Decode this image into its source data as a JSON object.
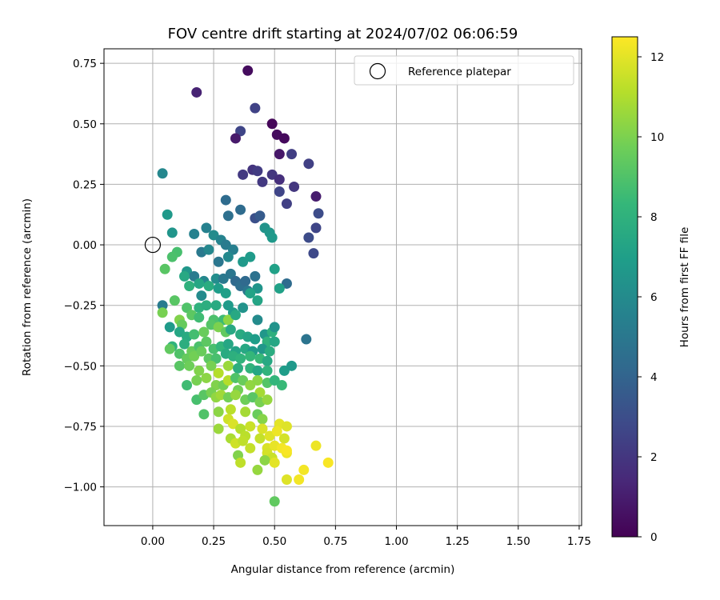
{
  "chart_data": {
    "type": "scatter",
    "title": "FOV centre drift starting at 2024/07/02 06:06:59",
    "xlabel": "Angular distance from reference (arcmin)",
    "ylabel": "Rotation from reference (arcmin)",
    "xlim": [
      -0.2,
      1.76
    ],
    "ylim": [
      -1.16,
      0.81
    ],
    "xticks": [
      0.0,
      0.25,
      0.5,
      0.75,
      1.0,
      1.25,
      1.5,
      1.75
    ],
    "xtick_labels": [
      "0.00",
      "0.25",
      "0.50",
      "0.75",
      "1.00",
      "1.25",
      "1.50",
      "1.75"
    ],
    "yticks": [
      0.75,
      0.5,
      0.25,
      0.0,
      -0.25,
      -0.5,
      -0.75,
      -1.0
    ],
    "ytick_labels": [
      "0.75",
      "0.50",
      "0.25",
      "0.00",
      "−0.25",
      "−0.50",
      "−0.75",
      "−1.00"
    ],
    "grid": true,
    "legend": {
      "position": "top-right",
      "entries": [
        {
          "label": "Reference platepar",
          "marker": "open-circle",
          "x": 0.0,
          "y": 0.0
        }
      ]
    },
    "colorbar": {
      "label": "Hours from first FF file",
      "colormap": "viridis",
      "range": [
        0,
        12.5
      ],
      "ticks": [
        0,
        2,
        4,
        6,
        8,
        10,
        12
      ],
      "tick_labels": [
        "0",
        "2",
        "4",
        "6",
        "8",
        "10",
        "12"
      ],
      "stops": [
        "#440154",
        "#482878",
        "#3e4989",
        "#31688e",
        "#26828e",
        "#1f9e89",
        "#35b779",
        "#6ece58",
        "#b5de2b",
        "#fde725"
      ]
    },
    "points": [
      [
        0.39,
        0.72,
        0.4
      ],
      [
        0.18,
        0.63,
        1.2
      ],
      [
        0.42,
        0.565,
        2.5
      ],
      [
        0.36,
        0.47,
        2.6
      ],
      [
        0.34,
        0.44,
        0.9
      ],
      [
        0.49,
        0.5,
        0.2
      ],
      [
        0.51,
        0.455,
        0.4
      ],
      [
        0.54,
        0.44,
        0.3
      ],
      [
        0.52,
        0.375,
        0.8
      ],
      [
        0.57,
        0.375,
        2.3
      ],
      [
        0.64,
        0.335,
        2.4
      ],
      [
        0.37,
        0.29,
        2.1
      ],
      [
        0.41,
        0.31,
        1.9
      ],
      [
        0.43,
        0.305,
        2.2
      ],
      [
        0.49,
        0.29,
        2.0
      ],
      [
        0.52,
        0.27,
        1.7
      ],
      [
        0.45,
        0.26,
        2.1
      ],
      [
        0.58,
        0.24,
        2.0
      ],
      [
        0.52,
        0.22,
        2.6
      ],
      [
        0.67,
        0.2,
        1.0
      ],
      [
        0.55,
        0.17,
        2.4
      ],
      [
        0.04,
        0.295,
        5.8
      ],
      [
        0.3,
        0.185,
        4.4
      ],
      [
        0.31,
        0.12,
        4.6
      ],
      [
        0.36,
        0.145,
        4.4
      ],
      [
        0.42,
        0.11,
        3.1
      ],
      [
        0.44,
        0.12,
        3.6
      ],
      [
        0.68,
        0.13,
        2.9
      ],
      [
        0.67,
        0.07,
        2.6
      ],
      [
        0.64,
        0.03,
        2.9
      ],
      [
        0.66,
        -0.035,
        2.8
      ],
      [
        0.06,
        0.125,
        6.7
      ],
      [
        0.08,
        0.05,
        6.5
      ],
      [
        0.22,
        0.07,
        5.5
      ],
      [
        0.17,
        0.045,
        5.5
      ],
      [
        0.46,
        0.07,
        6.4
      ],
      [
        0.48,
        0.05,
        6.6
      ],
      [
        0.49,
        0.03,
        6.7
      ],
      [
        0.25,
        0.04,
        6.0
      ],
      [
        0.28,
        0.02,
        5.6
      ],
      [
        0.3,
        0.0,
        5.2
      ],
      [
        0.33,
        -0.02,
        5.4
      ],
      [
        0.2,
        -0.03,
        5.1
      ],
      [
        0.23,
        -0.02,
        5.8
      ],
      [
        0.27,
        -0.07,
        4.9
      ],
      [
        0.31,
        -0.05,
        5.9
      ],
      [
        0.37,
        -0.07,
        6.7
      ],
      [
        0.4,
        -0.05,
        6.8
      ],
      [
        0.5,
        -0.1,
        7.1
      ],
      [
        0.1,
        -0.03,
        8.8
      ],
      [
        0.08,
        -0.05,
        8.9
      ],
      [
        0.05,
        -0.1,
        9.2
      ],
      [
        0.14,
        -0.11,
        6.6
      ],
      [
        0.17,
        -0.13,
        5.2
      ],
      [
        0.21,
        -0.15,
        5.8
      ],
      [
        0.26,
        -0.14,
        6.1
      ],
      [
        0.29,
        -0.14,
        5.0
      ],
      [
        0.32,
        -0.12,
        4.9
      ],
      [
        0.34,
        -0.15,
        4.3
      ],
      [
        0.36,
        -0.17,
        4.5
      ],
      [
        0.38,
        -0.15,
        4.3
      ],
      [
        0.42,
        -0.13,
        4.7
      ],
      [
        0.43,
        -0.18,
        6.5
      ],
      [
        0.39,
        -0.19,
        4.9
      ],
      [
        0.55,
        -0.16,
        4.4
      ],
      [
        0.52,
        -0.18,
        7.1
      ],
      [
        0.13,
        -0.13,
        7.5
      ],
      [
        0.15,
        -0.17,
        8.0
      ],
      [
        0.19,
        -0.16,
        7.4
      ],
      [
        0.23,
        -0.17,
        7.7
      ],
      [
        0.27,
        -0.18,
        6.9
      ],
      [
        0.3,
        -0.2,
        7.0
      ],
      [
        0.4,
        -0.2,
        7.2
      ],
      [
        0.43,
        -0.23,
        7.3
      ],
      [
        0.04,
        -0.25,
        5.2
      ],
      [
        0.09,
        -0.23,
        9.2
      ],
      [
        0.14,
        -0.26,
        9.0
      ],
      [
        0.19,
        -0.26,
        8.0
      ],
      [
        0.22,
        -0.25,
        7.8
      ],
      [
        0.26,
        -0.25,
        7.6
      ],
      [
        0.31,
        -0.25,
        6.8
      ],
      [
        0.33,
        -0.28,
        6.8
      ],
      [
        0.37,
        -0.26,
        6.4
      ],
      [
        0.2,
        -0.21,
        6.0
      ],
      [
        0.04,
        -0.28,
        9.9
      ],
      [
        0.11,
        -0.31,
        10.1
      ],
      [
        0.12,
        -0.33,
        9.5
      ],
      [
        0.16,
        -0.29,
        9.3
      ],
      [
        0.19,
        -0.3,
        8.6
      ],
      [
        0.25,
        -0.31,
        8.9
      ],
      [
        0.29,
        -0.31,
        8.5
      ],
      [
        0.31,
        -0.31,
        10.3
      ],
      [
        0.34,
        -0.29,
        7.5
      ],
      [
        0.43,
        -0.31,
        6.0
      ],
      [
        0.07,
        -0.34,
        6.8
      ],
      [
        0.11,
        -0.36,
        7.4
      ],
      [
        0.14,
        -0.38,
        7.6
      ],
      [
        0.17,
        -0.37,
        8.7
      ],
      [
        0.21,
        -0.36,
        9.6
      ],
      [
        0.24,
        -0.33,
        9.1
      ],
      [
        0.27,
        -0.34,
        10.0
      ],
      [
        0.3,
        -0.36,
        9.4
      ],
      [
        0.32,
        -0.35,
        7.5
      ],
      [
        0.36,
        -0.37,
        7.6
      ],
      [
        0.39,
        -0.38,
        7.3
      ],
      [
        0.42,
        -0.39,
        6.9
      ],
      [
        0.46,
        -0.37,
        6.6
      ],
      [
        0.49,
        -0.36,
        7.9
      ],
      [
        0.5,
        -0.34,
        6.4
      ],
      [
        0.47,
        -0.4,
        8.0
      ],
      [
        0.5,
        -0.4,
        7.4
      ],
      [
        0.63,
        -0.39,
        4.8
      ],
      [
        0.08,
        -0.42,
        8.1
      ],
      [
        0.13,
        -0.41,
        7.8
      ],
      [
        0.16,
        -0.44,
        9.6
      ],
      [
        0.19,
        -0.42,
        8.9
      ],
      [
        0.22,
        -0.4,
        9.3
      ],
      [
        0.25,
        -0.43,
        8.8
      ],
      [
        0.28,
        -0.42,
        8.2
      ],
      [
        0.31,
        -0.41,
        7.4
      ],
      [
        0.34,
        -0.44,
        7.2
      ],
      [
        0.38,
        -0.43,
        7.5
      ],
      [
        0.41,
        -0.44,
        6.8
      ],
      [
        0.45,
        -0.43,
        6.6
      ],
      [
        0.48,
        -0.44,
        7.7
      ],
      [
        0.07,
        -0.43,
        9.4
      ],
      [
        0.11,
        -0.45,
        9.0
      ],
      [
        0.14,
        -0.47,
        9.5
      ],
      [
        0.17,
        -0.46,
        9.8
      ],
      [
        0.2,
        -0.44,
        9.6
      ],
      [
        0.23,
        -0.47,
        9.3
      ],
      [
        0.26,
        -0.47,
        8.8
      ],
      [
        0.3,
        -0.45,
        7.6
      ],
      [
        0.33,
        -0.46,
        7.9
      ],
      [
        0.36,
        -0.47,
        8.1
      ],
      [
        0.4,
        -0.46,
        8.3
      ],
      [
        0.44,
        -0.47,
        8.4
      ],
      [
        0.47,
        -0.48,
        7.5
      ],
      [
        0.11,
        -0.5,
        9.2
      ],
      [
        0.15,
        -0.5,
        9.7
      ],
      [
        0.19,
        -0.52,
        10.1
      ],
      [
        0.24,
        -0.5,
        9.9
      ],
      [
        0.27,
        -0.53,
        11.1
      ],
      [
        0.31,
        -0.5,
        10.6
      ],
      [
        0.35,
        -0.51,
        7.8
      ],
      [
        0.4,
        -0.51,
        8.1
      ],
      [
        0.43,
        -0.52,
        7.4
      ],
      [
        0.47,
        -0.52,
        8.1
      ],
      [
        0.54,
        -0.52,
        6.9
      ],
      [
        0.57,
        -0.5,
        6.7
      ],
      [
        0.53,
        -0.58,
        8.4
      ],
      [
        0.14,
        -0.58,
        8.6
      ],
      [
        0.18,
        -0.56,
        9.9
      ],
      [
        0.22,
        -0.55,
        10.3
      ],
      [
        0.26,
        -0.58,
        10.1
      ],
      [
        0.29,
        -0.58,
        9.8
      ],
      [
        0.31,
        -0.56,
        11.1
      ],
      [
        0.34,
        -0.55,
        9.0
      ],
      [
        0.37,
        -0.56,
        9.6
      ],
      [
        0.4,
        -0.58,
        10.4
      ],
      [
        0.43,
        -0.56,
        10.3
      ],
      [
        0.47,
        -0.57,
        9.1
      ],
      [
        0.5,
        -0.56,
        8.2
      ],
      [
        0.35,
        -0.6,
        9.8
      ],
      [
        0.44,
        -0.61,
        10.8
      ],
      [
        0.18,
        -0.64,
        8.8
      ],
      [
        0.21,
        -0.62,
        9.2
      ],
      [
        0.24,
        -0.61,
        9.9
      ],
      [
        0.26,
        -0.63,
        10.4
      ],
      [
        0.28,
        -0.62,
        10.7
      ],
      [
        0.31,
        -0.63,
        9.8
      ],
      [
        0.34,
        -0.62,
        10.5
      ],
      [
        0.38,
        -0.64,
        9.7
      ],
      [
        0.41,
        -0.63,
        9.2
      ],
      [
        0.44,
        -0.65,
        9.9
      ],
      [
        0.47,
        -0.64,
        10.5
      ],
      [
        0.21,
        -0.7,
        9.0
      ],
      [
        0.27,
        -0.69,
        10.3
      ],
      [
        0.32,
        -0.68,
        11.2
      ],
      [
        0.38,
        -0.69,
        10.8
      ],
      [
        0.43,
        -0.7,
        9.6
      ],
      [
        0.45,
        -0.72,
        10.2
      ],
      [
        0.31,
        -0.72,
        11.6
      ],
      [
        0.33,
        -0.74,
        11.8
      ],
      [
        0.27,
        -0.76,
        10.6
      ],
      [
        0.36,
        -0.76,
        11.1
      ],
      [
        0.4,
        -0.75,
        11.5
      ],
      [
        0.45,
        -0.76,
        11.8
      ],
      [
        0.52,
        -0.74,
        12.0
      ],
      [
        0.55,
        -0.75,
        11.9
      ],
      [
        0.38,
        -0.79,
        11.2
      ],
      [
        0.44,
        -0.8,
        11.4
      ],
      [
        0.48,
        -0.79,
        11.9
      ],
      [
        0.51,
        -0.77,
        12.2
      ],
      [
        0.54,
        -0.8,
        11.7
      ],
      [
        0.32,
        -0.8,
        10.9
      ],
      [
        0.34,
        -0.82,
        11.6
      ],
      [
        0.37,
        -0.81,
        11.3
      ],
      [
        0.4,
        -0.84,
        11.4
      ],
      [
        0.47,
        -0.84,
        11.8
      ],
      [
        0.5,
        -0.83,
        12.1
      ],
      [
        0.53,
        -0.84,
        12.3
      ],
      [
        0.55,
        -0.86,
        12.2
      ],
      [
        0.35,
        -0.87,
        10.1
      ],
      [
        0.36,
        -0.9,
        11.3
      ],
      [
        0.47,
        -0.86,
        11.7
      ],
      [
        0.49,
        -0.88,
        11.5
      ],
      [
        0.46,
        -0.89,
        10.3
      ],
      [
        0.43,
        -0.93,
        10.5
      ],
      [
        0.5,
        -0.9,
        12.0
      ],
      [
        0.55,
        -0.85,
        12.4
      ],
      [
        0.62,
        -0.93,
        12.3
      ],
      [
        0.72,
        -0.9,
        12.4
      ],
      [
        0.67,
        -0.83,
        12.2
      ],
      [
        0.55,
        -0.97,
        11.9
      ],
      [
        0.6,
        -0.97,
        12.3
      ],
      [
        0.5,
        -1.06,
        9.4
      ]
    ]
  }
}
